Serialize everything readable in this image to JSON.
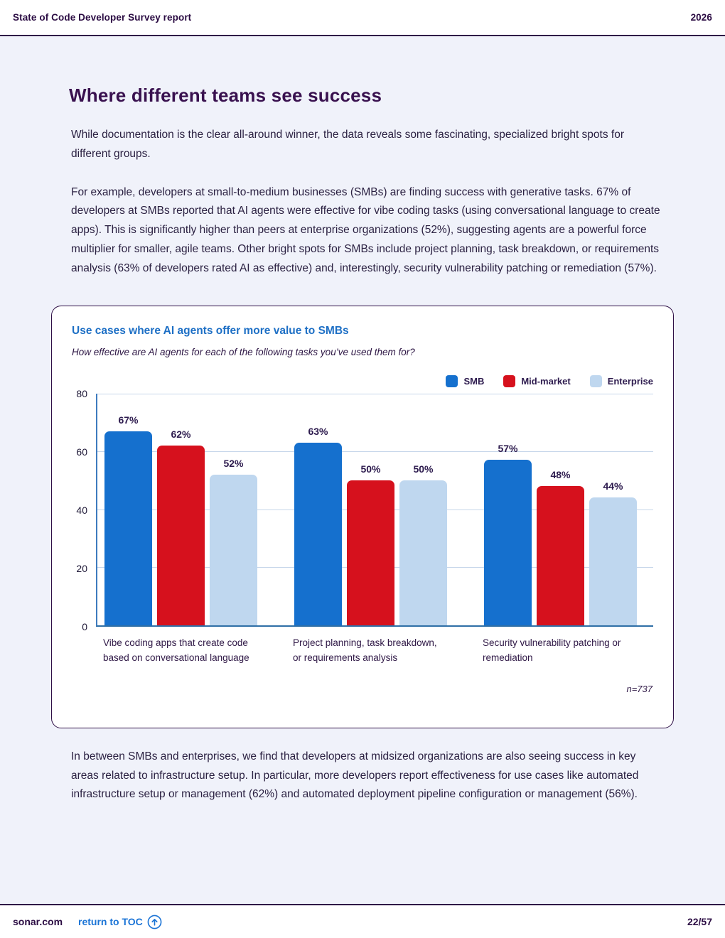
{
  "header": {
    "title": "State of Code Developer Survey report",
    "year": "2026"
  },
  "page": {
    "title": "Where different teams see success",
    "paragraphs": [
      "While documentation is the clear all-around winner, the data reveals some fascinating, specialized bright spots for different groups.",
      "For example, developers at small-to-medium businesses (SMBs) are finding success with generative tasks. 67% of developers at SMBs reported that AI agents were effective for vibe coding tasks (using conversational language to create apps). This is significantly higher than peers at enterprise organizations (52%), suggesting agents are a powerful force multiplier for smaller, agile teams. Other bright spots for SMBs include project planning, task breakdown, or requirements analysis (63% of developers rated AI as effective) and, interestingly, security vulnerability patching or remediation (57%)."
    ],
    "closing_paragraph": "In between SMBs and enterprises, we find that developers at midsized organizations are also seeing success in key areas related to infrastructure setup. In particular, more developers report effectiveness for use cases like automated infrastructure setup or management (62%) and automated deployment pipeline configuration or management (56%)."
  },
  "chart_card": {
    "title": "Use cases where AI agents offer more value to SMBs",
    "subtitle": "How effective are AI agents for each of the following tasks you’ve used them for?",
    "sample_note": "n=737"
  },
  "chart_data": {
    "type": "bar",
    "title": "Use cases where AI agents offer more value to SMBs",
    "subtitle": "How effective are AI agents for each of the following tasks you’ve used them for?",
    "categories": [
      "Vibe coding apps that create code based on conversational language",
      "Project planning, task breakdown, or requirements analysis",
      "Security vulnerability patching or remediation"
    ],
    "series": [
      {
        "name": "SMB",
        "color": "#1570CE",
        "values": [
          67,
          63,
          57
        ]
      },
      {
        "name": "Mid-market",
        "color": "#D6111D",
        "values": [
          62,
          50,
          48
        ]
      },
      {
        "name": "Enterprise",
        "color": "#BFD7EF",
        "values": [
          52,
          50,
          44
        ]
      }
    ],
    "value_suffix": "%",
    "ylim": [
      0,
      80
    ],
    "yticks": [
      0,
      20,
      40,
      60,
      80
    ],
    "grid": true,
    "legend_position": "top-right",
    "sample_size": "n=737"
  },
  "footer": {
    "site": "sonar.com",
    "toc_label": "return to TOC",
    "page_number": "22/57"
  }
}
